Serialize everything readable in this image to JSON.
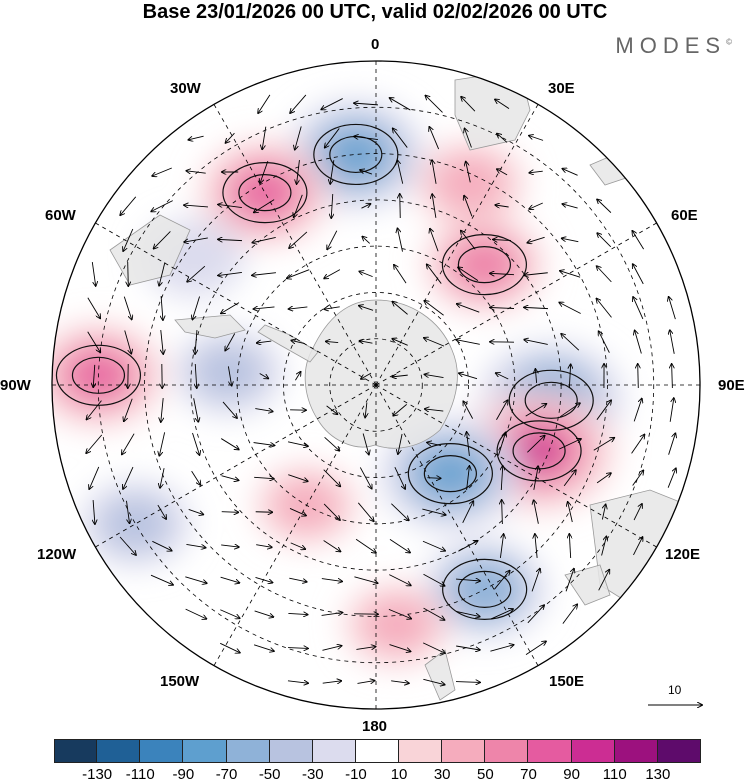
{
  "title": "Base 23/01/2026 00 UTC, valid 02/02/2026 00 UTC",
  "brand": "MODES",
  "brand_mark": "©",
  "longitude_labels": {
    "lon_0": "0",
    "lon_30e": "30E",
    "lon_60e": "60E",
    "lon_90e": "90E",
    "lon_120e": "120E",
    "lon_150e": "150E",
    "lon_180": "180",
    "lon_150w": "150W",
    "lon_120w": "120W",
    "lon_90w": "90W",
    "lon_60w": "60W",
    "lon_30w": "30W"
  },
  "reference_vector": {
    "label": "10"
  },
  "colorbar": {
    "colors": [
      "#173a5e",
      "#1f6096",
      "#3b83bc",
      "#5e9fcf",
      "#8fb2d8",
      "#b8c3e0",
      "#dcdcee",
      "#ffffff",
      "#f9d4d8",
      "#f5acbd",
      "#ee85aa",
      "#e55ba0",
      "#cc2d93",
      "#9c117e",
      "#5e0b6b"
    ],
    "ticks": [
      "-130",
      "-110",
      "-90",
      "-70",
      "-50",
      "-30",
      "-10",
      "10",
      "30",
      "50",
      "70",
      "90",
      "110",
      "130"
    ]
  },
  "anomaly_centers": [
    {
      "lon": -5,
      "lat": -40,
      "value": -80
    },
    {
      "lon": 25,
      "lat": -42,
      "value": 40
    },
    {
      "lon": 42,
      "lat": -55,
      "value": 55
    },
    {
      "lon": 95,
      "lat": -52,
      "value": -90
    },
    {
      "lon": 112,
      "lat": -52,
      "value": 100
    },
    {
      "lon": 140,
      "lat": -65,
      "value": -85
    },
    {
      "lon": 152,
      "lat": -40,
      "value": -60
    },
    {
      "lon": -30,
      "lat": -42,
      "value": 70
    },
    {
      "lon": -88,
      "lat": -30,
      "value": 70
    },
    {
      "lon": -85,
      "lat": -58,
      "value": -40
    },
    {
      "lon": -55,
      "lat": -42,
      "value": -30
    },
    {
      "lon": -120,
      "lat": -30,
      "value": -40
    },
    {
      "lon": -150,
      "lat": -60,
      "value": 30
    },
    {
      "lon": 175,
      "lat": -38,
      "value": 35
    }
  ]
}
